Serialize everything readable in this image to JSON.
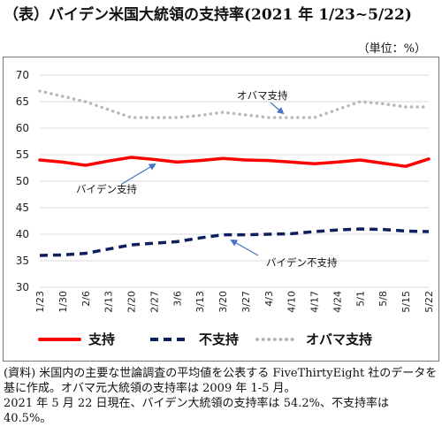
{
  "header": {
    "title": "（表）バイデン米国大統領の支持率(2021 年 1/23~5/22)",
    "unit": "（単位：%）"
  },
  "chart_data": {
    "type": "line",
    "title": "（表）バイデン米国大統領の支持率(2021 年 1/23~5/22)",
    "xlabel": "",
    "ylabel": "",
    "ylim": [
      30,
      70
    ],
    "yticks": [
      30,
      35,
      40,
      45,
      50,
      55,
      60,
      65,
      70
    ],
    "grid": true,
    "legend_position": "bottom",
    "categories": [
      "1/23",
      "1/30",
      "2/6",
      "2/13",
      "2/20",
      "2/27",
      "3/6",
      "3/13",
      "3/20",
      "3/27",
      "4/3",
      "4/10",
      "4/17",
      "4/24",
      "5/1",
      "5/8",
      "5/15",
      "5/22"
    ],
    "series": [
      {
        "name": "支持",
        "color": "#ff0000",
        "style": "solid",
        "values": [
          54.0,
          53.6,
          53.0,
          53.8,
          54.5,
          54.1,
          53.6,
          53.9,
          54.3,
          54.0,
          53.9,
          53.6,
          53.3,
          53.6,
          54.0,
          53.4,
          52.8,
          54.2
        ]
      },
      {
        "name": "不支持",
        "color": "#0d1f5c",
        "style": "dashed",
        "values": [
          36.0,
          36.1,
          36.4,
          37.2,
          38.0,
          38.3,
          38.6,
          39.3,
          39.9,
          39.9,
          40.0,
          40.1,
          40.5,
          40.8,
          41.0,
          40.9,
          40.6,
          40.5
        ]
      },
      {
        "name": "オバマ支持",
        "color": "#b8b8b8",
        "style": "dotted",
        "values": [
          67.0,
          66.0,
          65.0,
          63.5,
          62.0,
          62.0,
          62.0,
          62.4,
          63.0,
          62.5,
          62.0,
          62.0,
          62.0,
          63.5,
          65.0,
          64.6,
          64.0,
          64.0
        ]
      }
    ],
    "annotations": [
      {
        "text": "オバマ支持",
        "series": 2
      },
      {
        "text": "バイデン支持",
        "series": 0
      },
      {
        "text": "バイデン不支持",
        "series": 1
      }
    ]
  },
  "note": {
    "line1": "(資料) 米国内の主要な世論調査の平均値を公表する FiveThirtyEight 社のデータを基に作成。オバマ元大統領の支持率は 2009 年 1-5 月。",
    "line2": "2021 年 5 月 22 日現在、バイデン大統領の支持率は 54.2%、不支持率は 40.5%。"
  }
}
